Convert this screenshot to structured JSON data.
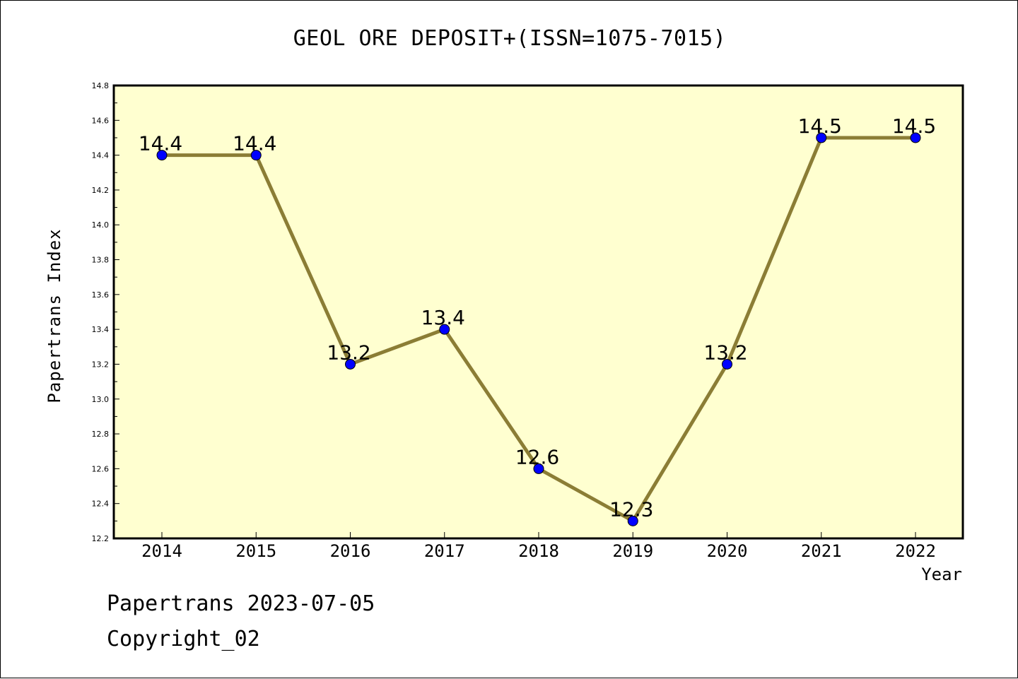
{
  "chart_data": {
    "type": "line",
    "title": "GEOL ORE DEPOSIT+(ISSN=1075-7015)",
    "xlabel": "Year",
    "ylabel": "Papertrans Index",
    "categories": [
      "2014",
      "2015",
      "2016",
      "2017",
      "2018",
      "2019",
      "2020",
      "2021",
      "2022"
    ],
    "series": [
      {
        "values": [
          14.4,
          14.4,
          13.2,
          13.4,
          12.6,
          12.3,
          13.2,
          14.5,
          14.5
        ],
        "labels": [
          "14.4",
          "14.4",
          "13.2",
          "13.4",
          "12.6",
          "12.3",
          "13.2",
          "14.5",
          "14.5"
        ]
      }
    ],
    "ylim": [
      12.2,
      14.8
    ],
    "yticks": [
      "12.2",
      "12.4",
      "12.6",
      "12.8",
      "13.0",
      "13.2",
      "13.4",
      "13.6",
      "13.8",
      "14.0",
      "14.2",
      "14.4",
      "14.6",
      "14.8"
    ],
    "grid": false,
    "legend": "none",
    "colors": {
      "plot_background": "#ffffd0",
      "line": "#8b7d35",
      "marker": "#0000ff"
    }
  },
  "footer": {
    "date_line": "Papertrans 2023-07-05",
    "copyright": "Copyright_02"
  }
}
